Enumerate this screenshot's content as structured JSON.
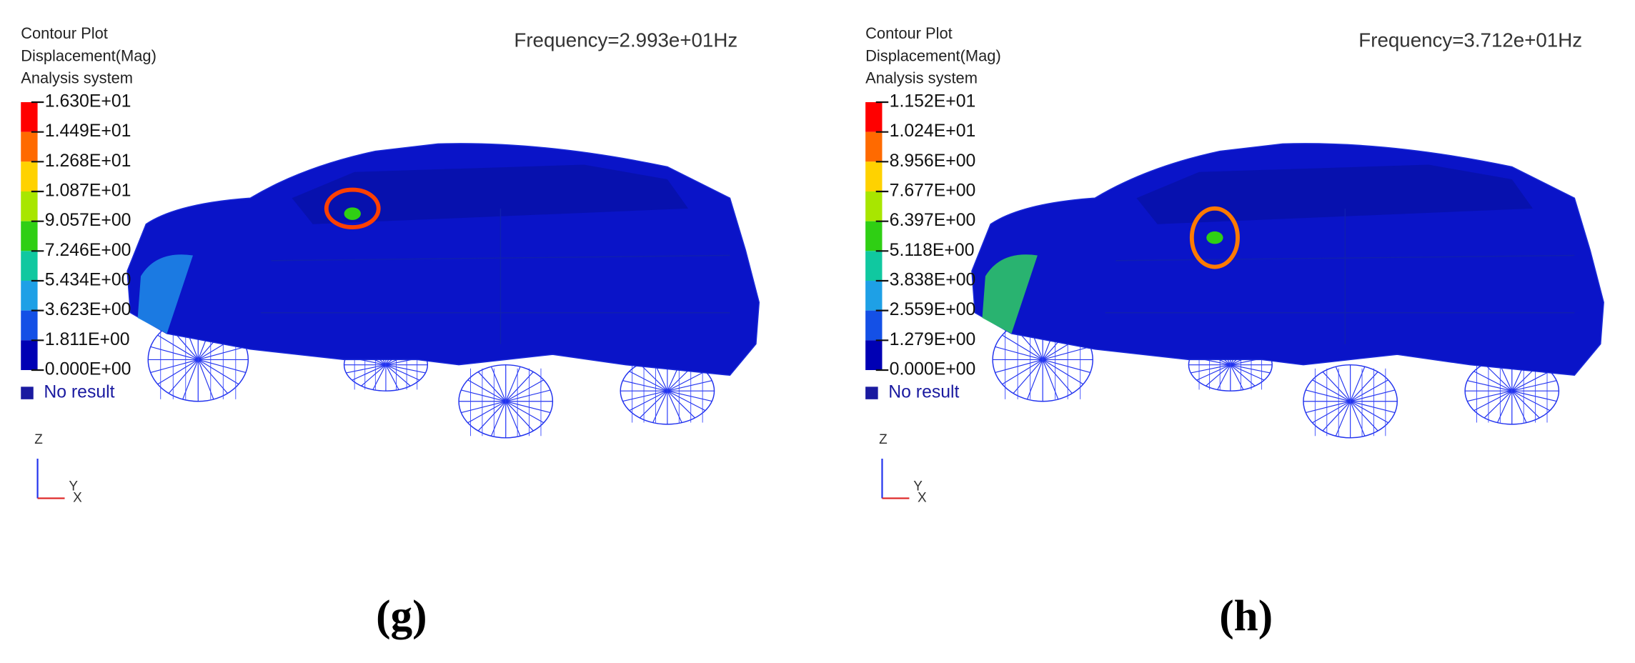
{
  "panels": [
    {
      "header": [
        "Contour Plot",
        "Displacement(Mag)",
        "Analysis system"
      ],
      "frequency": "Frequency=2.993e+01Hz",
      "legend_labels": [
        "1.630E+01",
        "1.449E+01",
        "1.268E+01",
        "1.087E+01",
        "9.057E+00",
        "7.246E+00",
        "5.434E+00",
        "3.623E+00",
        "1.811E+00",
        "0.000E+00"
      ],
      "no_result": "No result",
      "axes": [
        "Z",
        "Y",
        "X"
      ],
      "caption": "(g)"
    },
    {
      "header": [
        "Contour Plot",
        "Displacement(Mag)",
        "Analysis system"
      ],
      "frequency": "Frequency=3.712e+01Hz",
      "legend_labels": [
        "1.152E+01",
        "1.024E+01",
        "8.956E+00",
        "7.677E+00",
        "6.397E+00",
        "5.118E+00",
        "3.838E+00",
        "2.559E+00",
        "1.279E+00",
        "0.000E+00"
      ],
      "no_result": "No result",
      "axes": [
        "Z",
        "Y",
        "X"
      ],
      "caption": "(h)"
    }
  ]
}
